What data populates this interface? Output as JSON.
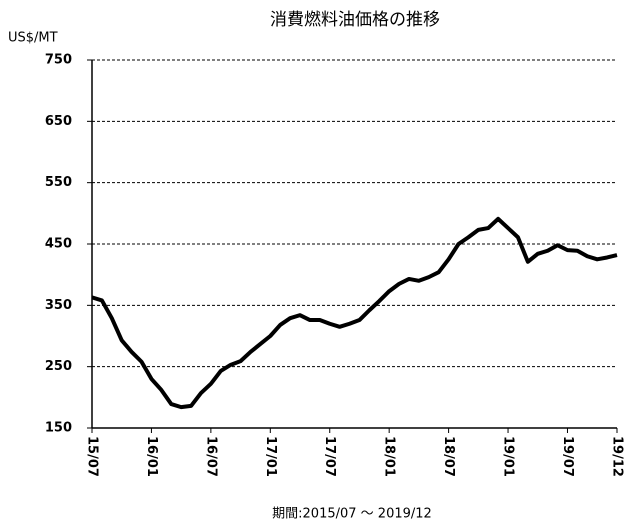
{
  "chart_data": {
    "type": "line",
    "title": "消費燃料油価格の推移",
    "y_label": "US$/MT",
    "footer": "期間:2015/07 ～ 2019/12",
    "categories": [
      "15/07",
      null,
      null,
      null,
      null,
      null,
      "16/01",
      null,
      null,
      null,
      null,
      null,
      "16/07",
      null,
      null,
      null,
      null,
      null,
      "17/01",
      null,
      null,
      null,
      null,
      null,
      "17/07",
      null,
      null,
      null,
      null,
      null,
      "18/01",
      null,
      null,
      null,
      null,
      null,
      "18/07",
      null,
      null,
      null,
      null,
      null,
      "19/01",
      null,
      null,
      null,
      null,
      null,
      "19/07",
      null,
      null,
      null,
      null,
      "19/12"
    ],
    "series": [
      {
        "color": "#000000",
        "values": [
          363,
          358,
          329,
          293,
          274,
          258,
          230,
          212,
          189,
          184,
          186,
          207,
          222,
          243,
          253,
          259,
          274,
          287,
          300,
          318,
          329,
          334,
          326,
          326,
          320,
          315,
          320,
          326,
          342,
          357,
          373,
          385,
          393,
          390,
          396,
          404,
          425,
          450,
          461,
          473,
          476,
          491,
          476,
          461,
          421,
          434,
          439,
          448,
          440,
          439,
          430,
          425,
          428,
          432
        ]
      }
    ],
    "ylim": [
      150,
      750
    ],
    "yticks": [
      150,
      250,
      350,
      450,
      550,
      650,
      750
    ],
    "grid": true
  }
}
